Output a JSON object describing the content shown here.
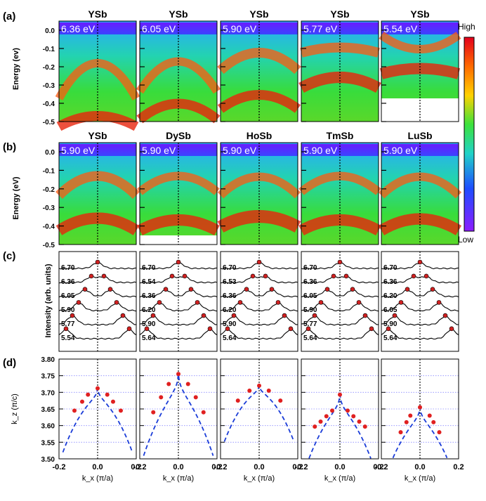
{
  "panel_labels": [
    "(a)",
    "(b)",
    "(c)",
    "(d)"
  ],
  "row_a": {
    "titles": [
      "YSb",
      "YSb",
      "YSb",
      "YSb",
      "YSb"
    ],
    "energies": [
      "6.36 eV",
      "6.05 eV",
      "5.90 eV",
      "5.77 eV",
      "5.54 eV"
    ],
    "ylabel": "Energy (ev)",
    "yticks": [
      "0.0",
      "-0.1",
      "-0.2",
      "-0.3",
      "-0.4",
      "-0.5"
    ]
  },
  "row_b": {
    "titles": [
      "YSb",
      "DySb",
      "HoSb",
      "TmSb",
      "LuSb"
    ],
    "energies": [
      "5.90 eV",
      "5.90 eV",
      "5.90 eV",
      "5.90 eV",
      "5.90 eV"
    ],
    "ylabel": "Energy (eV)",
    "yticks": [
      "0.0",
      "-0.1",
      "-0.2",
      "-0.3",
      "-0.4",
      "-0.5"
    ]
  },
  "row_c": {
    "ylabel": "Intensity (arb. units)",
    "curve_labels": [
      [
        "6.70",
        "6.36",
        "6.05",
        "5.90",
        "5.77",
        "5.54"
      ],
      [
        "6.70",
        "6.54",
        "6.36",
        "6.20",
        "5.90",
        "5.64"
      ],
      [
        "6.70",
        "6.53",
        "6.36",
        "6.20",
        "5.90",
        "5.64"
      ],
      [
        "6.70",
        "6.36",
        "6.05",
        "5.90",
        "5.77",
        "5.64"
      ],
      [
        "6.70",
        "6.36",
        "6.20",
        "6.05",
        "5.90",
        "5.64"
      ]
    ]
  },
  "colorbar": {
    "high": "High",
    "low": "Low"
  },
  "colors": {
    "dash_fit": "#1a3cd8",
    "dot": "#e02020",
    "grid": "#8a8aff"
  },
  "chart_data": {
    "type": "scatter",
    "ylabel": "k_z (π/c)",
    "xlabel": "k_x (π/a)",
    "xlim": [
      -0.2,
      0.2
    ],
    "ylim": [
      3.5,
      3.8
    ],
    "xticks": [
      "-0.2",
      "0.0",
      "0.2"
    ],
    "yticks": [
      "3.50",
      "3.55",
      "3.60",
      "3.65",
      "3.70",
      "3.75",
      "3.80"
    ],
    "series": [
      {
        "x": [
          -0.12,
          -0.08,
          -0.05,
          0.0,
          0.05,
          0.08,
          0.12
        ],
        "y": [
          3.645,
          3.672,
          3.693,
          3.712,
          3.693,
          3.672,
          3.645
        ]
      },
      {
        "x": [
          -0.13,
          -0.09,
          -0.05,
          0.0,
          0.05,
          0.09,
          0.13
        ],
        "y": [
          3.64,
          3.685,
          3.725,
          3.755,
          3.725,
          3.685,
          3.64
        ]
      },
      {
        "x": [
          -0.11,
          -0.05,
          0.0,
          0.05,
          0.11
        ],
        "y": [
          3.675,
          3.705,
          3.72,
          3.705,
          3.675
        ]
      },
      {
        "x": [
          -0.13,
          -0.1,
          -0.07,
          -0.04,
          0.0,
          0.04,
          0.07,
          0.1,
          0.13
        ],
        "y": [
          3.597,
          3.612,
          3.628,
          3.645,
          3.693,
          3.645,
          3.628,
          3.612,
          3.597
        ]
      },
      {
        "x": [
          -0.1,
          -0.07,
          -0.05,
          0.0,
          0.05,
          0.07,
          0.1
        ],
        "y": [
          3.58,
          3.61,
          3.63,
          3.655,
          3.63,
          3.61,
          3.58
        ]
      }
    ]
  }
}
